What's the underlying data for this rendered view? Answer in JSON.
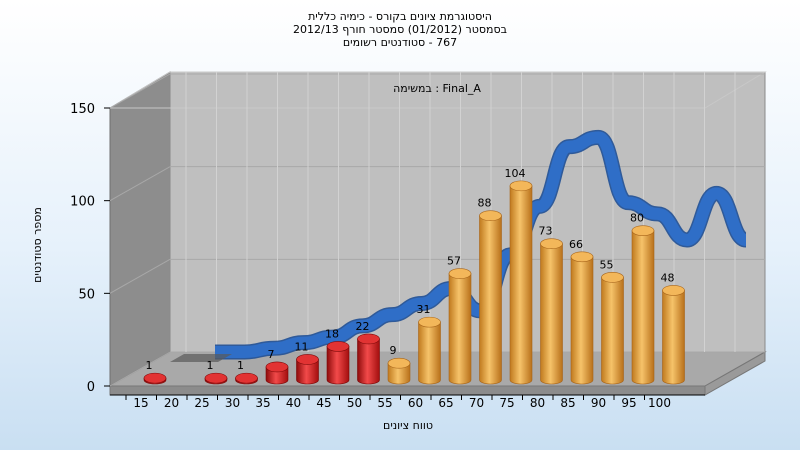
{
  "title_lines": [
    "היסטוגרמת ציונים בקורס - כימיה כללית",
    "בסמסטר  (01/2012)  סמסטר חורף  2012/13",
    "767 - סטודנטים רשומים"
  ],
  "colors": {
    "red": "#d81c1c",
    "orange": "#e89e35",
    "curve": "#2f6ec7"
  },
  "chart_data": {
    "type": "bar",
    "subtitle": "Final_A : במשימה",
    "xlabel": "טווח ציונים",
    "ylabel": "מספר סטודנטים",
    "ylim": [
      0,
      150
    ],
    "y_ticks": [
      "0",
      "50",
      "100",
      "150"
    ],
    "categories": [
      "15",
      "20",
      "25",
      "30",
      "35",
      "40",
      "45",
      "50",
      "55",
      "60",
      "65",
      "70",
      "75",
      "80",
      "85",
      "90",
      "95",
      "100"
    ],
    "values": [
      1,
      0,
      1,
      1,
      7,
      11,
      18,
      22,
      9,
      31,
      57,
      88,
      104,
      73,
      66,
      55,
      80,
      48
    ],
    "value_labels": [
      "1",
      "",
      "1",
      "1",
      "7",
      "11",
      "18",
      "22",
      "9",
      "31",
      "57",
      "88",
      "104",
      "73",
      "66",
      "55",
      "80",
      "48"
    ],
    "bar_colors": [
      "red",
      "red",
      "red",
      "red",
      "red",
      "red",
      "red",
      "red",
      "orange",
      "orange",
      "orange",
      "orange",
      "orange",
      "orange",
      "orange",
      "orange",
      "orange",
      "orange"
    ],
    "curve_values": [
      0,
      0,
      2,
      5,
      8,
      14,
      20,
      26,
      34,
      22,
      52,
      78,
      110,
      115,
      80,
      74,
      60,
      85,
      60
    ]
  }
}
